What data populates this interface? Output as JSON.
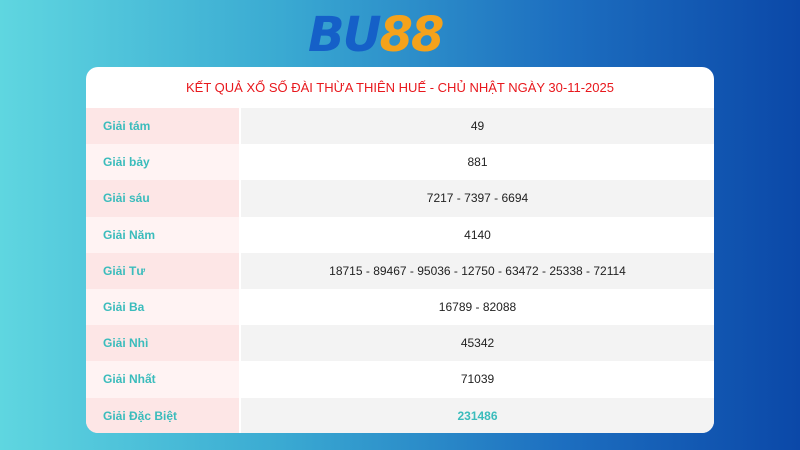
{
  "logo": {
    "text_a": "BU",
    "text_b": "88"
  },
  "title": "KẾT QUẢ XỔ SỐ ĐÀI THỪA THIÊN HUẾ - CHỦ NHẬT NGÀY 30-11-2025",
  "rows": [
    {
      "label": "Giải tám",
      "value": "49"
    },
    {
      "label": "Giải bảy",
      "value": "881"
    },
    {
      "label": "Giải sáu",
      "value": "7217 - 7397 - 6694"
    },
    {
      "label": "Giải Năm",
      "value": "4140"
    },
    {
      "label": "Giải Tư",
      "value": "18715 - 89467 - 95036 - 12750 - 63472 - 25338 - 72114"
    },
    {
      "label": "Giải Ba",
      "value": "16789 - 82088"
    },
    {
      "label": "Giải Nhì",
      "value": "45342"
    },
    {
      "label": "Giải Nhất",
      "value": "71039"
    },
    {
      "label": "Giải Đặc Biệt",
      "value": "231486"
    }
  ],
  "colors": {
    "title": "#e8181d",
    "label": "#3bbcbc",
    "logo_blue": "#1560c8",
    "logo_orange": "#f5a21b"
  }
}
